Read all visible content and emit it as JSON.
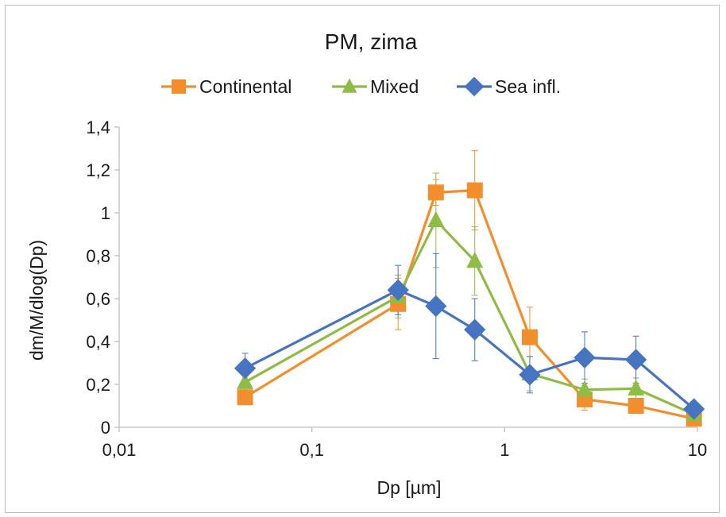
{
  "chart_data": {
    "type": "line",
    "title": "PM, zima",
    "xlabel": "Dp [µm]",
    "ylabel": "dm/M/dlog(Dp)",
    "xscale": "log",
    "xlim": [
      0.01,
      10
    ],
    "ylim": [
      0,
      1.4
    ],
    "xticks": [
      {
        "v": 0.01,
        "label": "0,01"
      },
      {
        "v": 0.1,
        "label": "0,1"
      },
      {
        "v": 1,
        "label": "1"
      },
      {
        "v": 10,
        "label": "10"
      }
    ],
    "yticks": [
      {
        "v": 0,
        "label": "0"
      },
      {
        "v": 0.2,
        "label": "0,2"
      },
      {
        "v": 0.4,
        "label": "0,4"
      },
      {
        "v": 0.6,
        "label": "0,6"
      },
      {
        "v": 0.8,
        "label": "0,8"
      },
      {
        "v": 1.0,
        "label": "1"
      },
      {
        "v": 1.2,
        "label": "1,2"
      },
      {
        "v": 1.4,
        "label": "1,4"
      }
    ],
    "grid": false,
    "legend_position": "top",
    "x": [
      0.045,
      0.28,
      0.44,
      0.7,
      1.35,
      2.6,
      4.8,
      9.6
    ],
    "series": [
      {
        "name": "Continental",
        "color": "#f28e2b",
        "marker": "square",
        "values": [
          0.14,
          0.575,
          1.095,
          1.105,
          0.42,
          0.13,
          0.1,
          0.04
        ],
        "errors": [
          0.03,
          0.12,
          0.06,
          0.185,
          0.14,
          0.05,
          0.03,
          0.02
        ]
      },
      {
        "name": "Mixed",
        "color": "#8fbc45",
        "marker": "triangle",
        "values": [
          0.21,
          0.61,
          0.965,
          0.775,
          0.25,
          0.175,
          0.18,
          0.06
        ],
        "errors": [
          0.04,
          0.1,
          0.22,
          0.16,
          0.08,
          0.05,
          0.05,
          0.02
        ]
      },
      {
        "name": "Sea infl.",
        "color": "#4674c1",
        "marker": "diamond",
        "values": [
          0.275,
          0.64,
          0.565,
          0.455,
          0.245,
          0.325,
          0.315,
          0.085
        ],
        "errors": [
          0.07,
          0.115,
          0.245,
          0.145,
          0.085,
          0.12,
          0.11,
          0.03
        ]
      }
    ]
  }
}
